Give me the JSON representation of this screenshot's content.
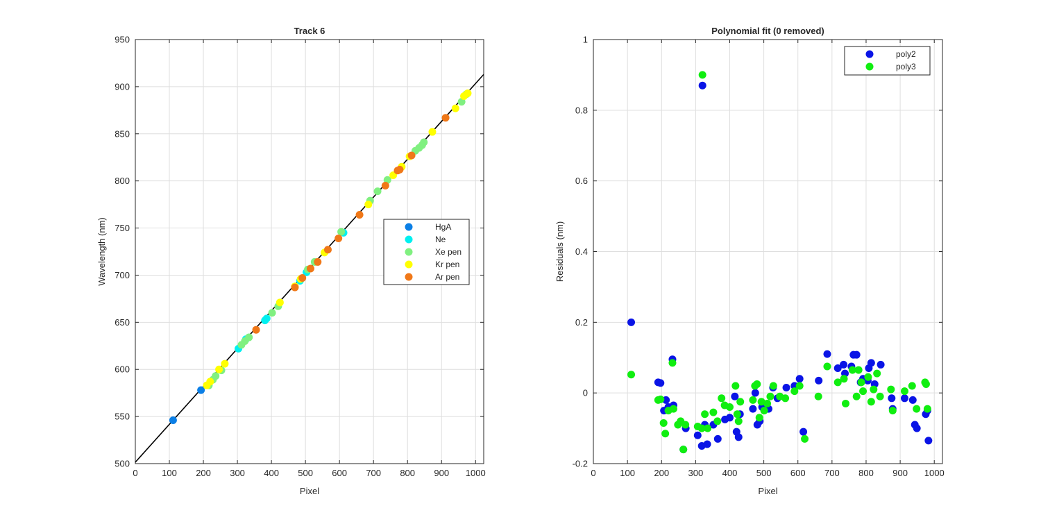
{
  "chart_data": [
    {
      "type": "scatter",
      "title": "Track 6",
      "xlabel": "Pixel",
      "ylabel": "Wavelength (nm)",
      "xlim": [
        0,
        1024
      ],
      "ylim": [
        500,
        950
      ],
      "xticks": [
        0,
        100,
        200,
        300,
        400,
        500,
        600,
        700,
        800,
        900,
        1000
      ],
      "yticks": [
        500,
        550,
        600,
        650,
        700,
        750,
        800,
        850,
        900,
        950
      ],
      "grid": true,
      "legend_position": "middle-right",
      "fit_line": {
        "color": "#000000",
        "x": [
          0,
          1024
        ],
        "y": [
          501.5,
          913
        ]
      },
      "series": [
        {
          "name": "HgA",
          "color": "#0b7fe6",
          "x": [
            111,
            193
          ],
          "y": [
            546,
            578
          ]
        },
        {
          "name": "Ne",
          "color": "#00f0f0",
          "x": [
            303,
            325,
            381,
            386,
            484,
            503,
            612
          ],
          "y": [
            622,
            632,
            652,
            654,
            694,
            703,
            745
          ]
        },
        {
          "name": "Xe pen",
          "color": "#80f080",
          "x": [
            216,
            228,
            236,
            253,
            312,
            322,
            334,
            402,
            420,
            507,
            527,
            605,
            690,
            712,
            741,
            823,
            834,
            843,
            848,
            959,
            973
          ],
          "y": [
            583,
            589,
            593,
            599,
            626,
            630,
            634,
            660,
            667,
            706,
            714,
            746,
            779,
            789,
            801,
            832,
            835,
            838,
            841,
            884,
            892
          ]
        },
        {
          "name": "Kr pen",
          "color": "#ffff00",
          "x": [
            210,
            220,
            246,
            263,
            425,
            469,
            486,
            556,
            685,
            758,
            783,
            806,
            873,
            941,
            966,
            977
          ],
          "y": [
            583,
            587,
            600,
            606,
            671,
            688,
            696,
            724,
            775,
            806,
            815,
            826,
            852,
            877,
            890,
            893
          ]
        },
        {
          "name": "Ar pen",
          "color": "#f07818",
          "x": [
            355,
            469,
            491,
            515,
            536,
            566,
            597,
            659,
            735,
            771,
            777,
            812,
            912
          ],
          "y": [
            642,
            687,
            697,
            707,
            714,
            727,
            739,
            764,
            795,
            811,
            812,
            827,
            867
          ]
        }
      ]
    },
    {
      "type": "scatter",
      "title": "Polynomial fit  (0 removed)",
      "xlabel": "Pixel",
      "ylabel": "Residuals (nm)",
      "xlim": [
        0,
        1024
      ],
      "ylim": [
        -0.2,
        1
      ],
      "xticks": [
        0,
        100,
        200,
        300,
        400,
        500,
        600,
        700,
        800,
        900,
        1000
      ],
      "yticks": [
        -0.2,
        0,
        0.2,
        0.4,
        0.6,
        0.8,
        1
      ],
      "ytick_labels": [
        "-0.2",
        "0",
        "0.2",
        "0.4",
        "0.6",
        "0.8",
        "1"
      ],
      "grid": true,
      "legend_position": "top-right",
      "series": [
        {
          "name": "poly2",
          "color": "#0a14e6",
          "x": [
            111,
            190,
            197,
            207,
            213,
            220,
            232,
            235,
            264,
            271,
            306,
            318,
            320,
            327,
            334,
            352,
            365,
            386,
            400,
            415,
            420,
            426,
            430,
            468,
            475,
            481,
            488,
            495,
            506,
            514,
            527,
            540,
            566,
            590,
            605,
            616,
            661,
            686,
            717,
            734,
            738,
            757,
            763,
            772,
            784,
            791,
            805,
            808,
            815,
            825,
            843,
            875,
            878,
            913,
            937,
            943,
            949,
            975,
            980,
            983
          ],
          "y": [
            0.2,
            0.03,
            0.028,
            -0.05,
            -0.02,
            -0.04,
            0.095,
            -0.035,
            -0.16,
            -0.1,
            -0.12,
            -0.15,
            0.87,
            -0.09,
            -0.145,
            -0.09,
            -0.13,
            -0.075,
            -0.07,
            -0.01,
            -0.11,
            -0.125,
            -0.06,
            -0.045,
            0.0,
            -0.09,
            -0.08,
            -0.04,
            -0.035,
            -0.045,
            0.015,
            -0.015,
            0.015,
            0.02,
            0.04,
            -0.11,
            0.035,
            0.11,
            0.07,
            0.08,
            0.055,
            0.075,
            0.108,
            0.108,
            0.03,
            0.04,
            0.035,
            0.07,
            0.085,
            0.025,
            0.08,
            -0.015,
            -0.045,
            -0.015,
            -0.02,
            -0.09,
            -0.1,
            -0.06,
            -0.05,
            -0.135
          ]
        },
        {
          "name": "poly3",
          "color": "#10ee10",
          "x": [
            111,
            190,
            197,
            206,
            211,
            220,
            232,
            235,
            248,
            256,
            264,
            270,
            306,
            318,
            320,
            327,
            335,
            352,
            364,
            376,
            385,
            400,
            417,
            422,
            426,
            431,
            468,
            474,
            480,
            487,
            493,
            501,
            510,
            519,
            528,
            547,
            563,
            590,
            605,
            620,
            660,
            686,
            717,
            735,
            740,
            760,
            772,
            778,
            786,
            791,
            806,
            815,
            822,
            832,
            841,
            873,
            878,
            913,
            935,
            948,
            973,
            976,
            980
          ],
          "y": [
            0.052,
            -0.02,
            -0.018,
            -0.085,
            -0.115,
            -0.05,
            0.085,
            -0.045,
            -0.09,
            -0.08,
            -0.16,
            -0.09,
            -0.095,
            -0.1,
            0.9,
            -0.06,
            -0.1,
            -0.055,
            -0.08,
            -0.015,
            -0.035,
            -0.04,
            0.02,
            -0.06,
            -0.08,
            -0.025,
            -0.02,
            0.02,
            0.025,
            -0.07,
            -0.025,
            -0.05,
            -0.03,
            -0.01,
            0.02,
            -0.01,
            -0.015,
            0.005,
            0.02,
            -0.13,
            -0.01,
            0.075,
            0.03,
            0.04,
            -0.03,
            0.065,
            -0.01,
            0.065,
            0.03,
            0.005,
            0.045,
            -0.025,
            0.01,
            0.055,
            -0.01,
            0.01,
            -0.05,
            0.005,
            0.02,
            -0.045,
            0.03,
            0.025,
            -0.045
          ]
        }
      ]
    }
  ]
}
